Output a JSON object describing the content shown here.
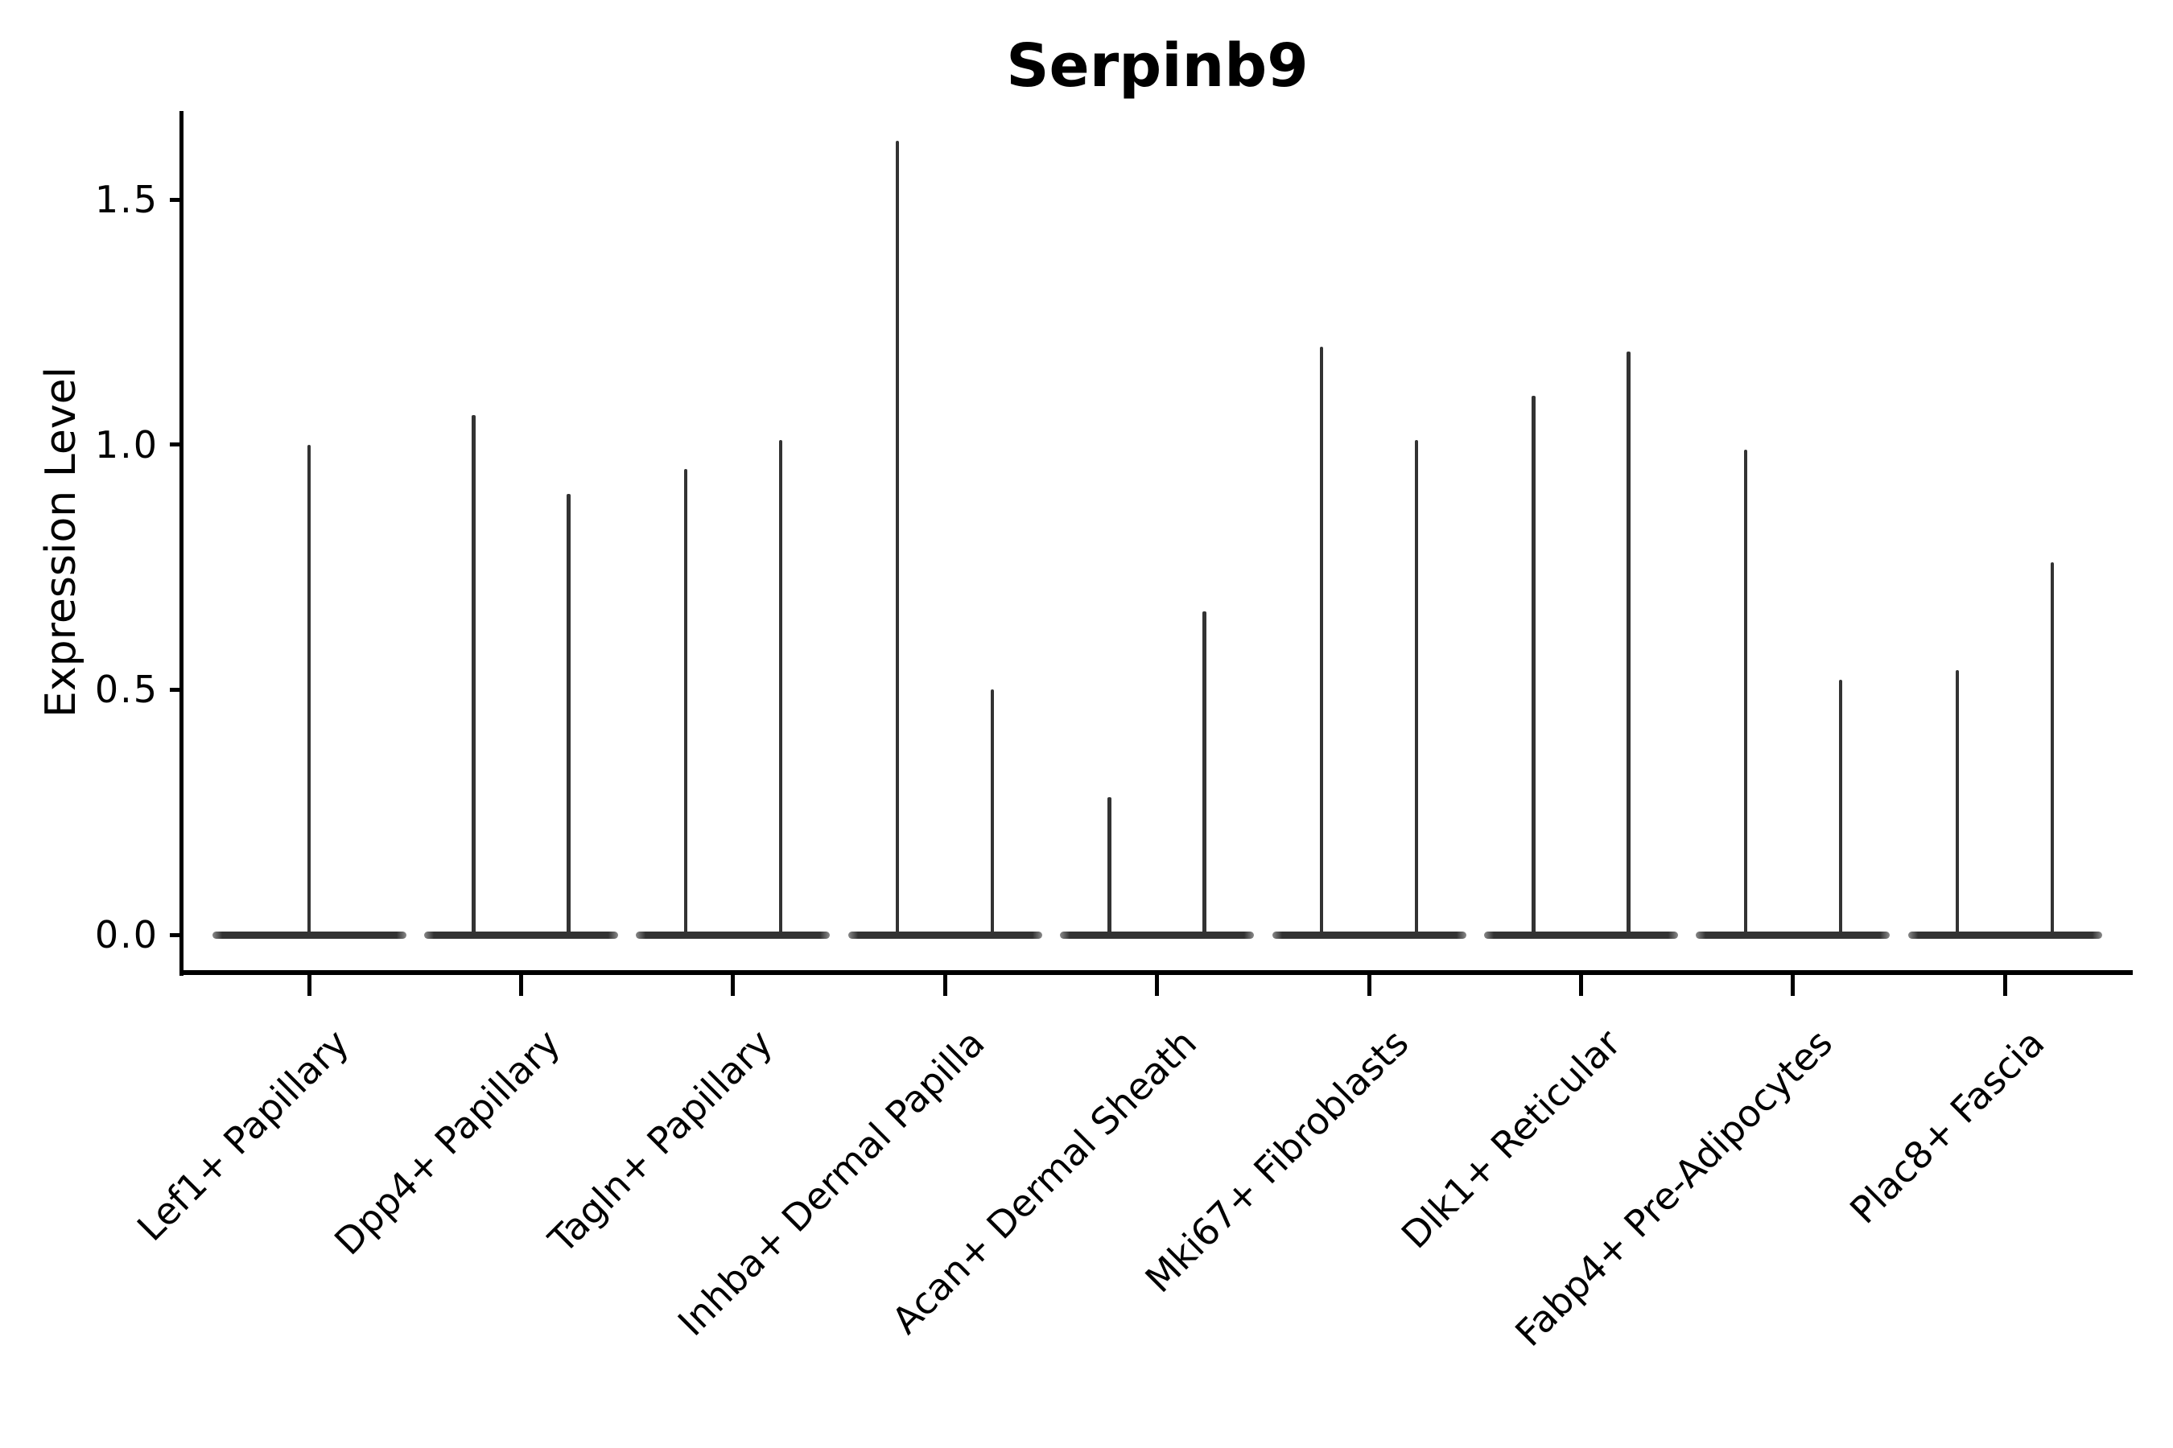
{
  "figure": {
    "title": "Serpinb9"
  },
  "chart_data": {
    "type": "violin",
    "title": "Serpinb9",
    "xlabel": "",
    "ylabel": "Expression Level",
    "yticks": [
      0.0,
      0.5,
      1.0,
      1.5
    ],
    "ytick_labels": [
      "0.0",
      "0.5",
      "1.0",
      "1.5"
    ],
    "ylim": [
      -0.08,
      1.68
    ],
    "grid": false,
    "legend_position": "none",
    "categories": [
      "Lef1+ Papillary",
      "Dpp4+ Papillary",
      "Tagln+ Papillary",
      "Inhba+ Dermal Papilla",
      "Acan+ Dermal Sheath",
      "Mki67+ Fibroblasts",
      "Dlk1+ Reticular",
      "Fabp4+ Pre-Adipocytes",
      "Plac8+ Fascia"
    ],
    "violins": [
      {
        "category": "Lef1+ Papillary",
        "base_value": 0.0,
        "spikes": [
          {
            "position": "center",
            "max": 1.0
          }
        ]
      },
      {
        "category": "Dpp4+ Papillary",
        "base_value": 0.0,
        "spikes": [
          {
            "position": "left",
            "max": 1.06
          },
          {
            "position": "right",
            "max": 0.9
          }
        ]
      },
      {
        "category": "Tagln+ Papillary",
        "base_value": 0.0,
        "spikes": [
          {
            "position": "left",
            "max": 0.95
          },
          {
            "position": "right",
            "max": 1.01
          }
        ]
      },
      {
        "category": "Inhba+ Dermal Papilla",
        "base_value": 0.0,
        "spikes": [
          {
            "position": "left",
            "max": 1.62
          },
          {
            "position": "right",
            "max": 0.5
          }
        ]
      },
      {
        "category": "Acan+ Dermal Sheath",
        "base_value": 0.0,
        "spikes": [
          {
            "position": "left",
            "max": 0.28
          },
          {
            "position": "right",
            "max": 0.66
          }
        ]
      },
      {
        "category": "Mki67+ Fibroblasts",
        "base_value": 0.0,
        "spikes": [
          {
            "position": "left",
            "max": 1.2
          },
          {
            "position": "right",
            "max": 1.01
          }
        ]
      },
      {
        "category": "Dlk1+ Reticular",
        "base_value": 0.0,
        "spikes": [
          {
            "position": "left",
            "max": 1.1
          },
          {
            "position": "right",
            "max": 1.19
          }
        ]
      },
      {
        "category": "Fabp4+ Pre-Adipocytes",
        "base_value": 0.0,
        "spikes": [
          {
            "position": "left",
            "max": 0.99
          },
          {
            "position": "right",
            "max": 0.52
          }
        ]
      },
      {
        "category": "Plac8+ Fascia",
        "base_value": 0.0,
        "spikes": [
          {
            "position": "left",
            "max": 0.54
          },
          {
            "position": "right",
            "max": 0.76
          }
        ]
      }
    ],
    "colors": {
      "violin_stroke": "#333333",
      "axis": "#000000",
      "text": "#000000",
      "background": "#ffffff"
    }
  }
}
